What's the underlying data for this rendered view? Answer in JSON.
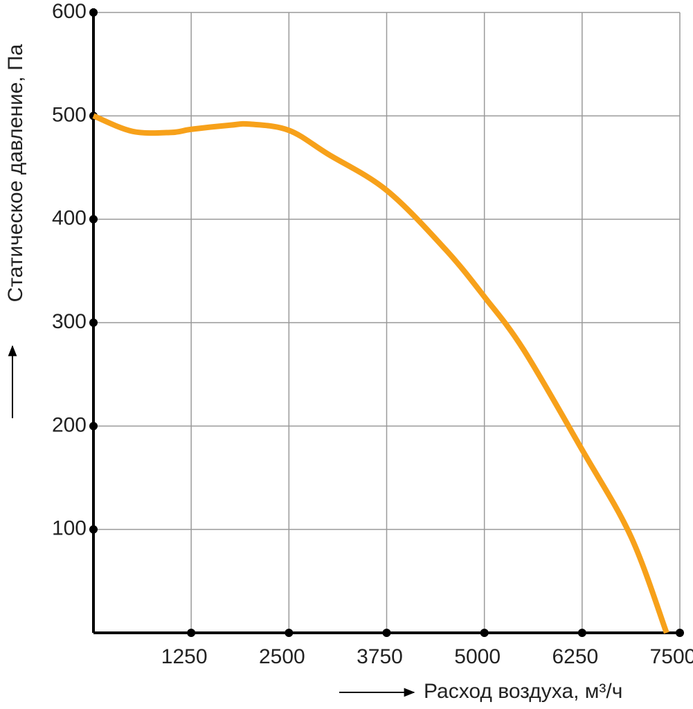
{
  "chart_data": {
    "type": "line",
    "x_label": "Расход воздуха, м³/ч",
    "y_label": "Статическое давление, Па",
    "x": [
      0,
      500,
      1000,
      1250,
      1750,
      2000,
      2500,
      3000,
      3750,
      4500,
      5000,
      5500,
      6250,
      6875,
      7330
    ],
    "values": [
      500,
      485,
      484,
      487,
      491,
      492,
      486,
      463,
      428,
      371,
      325,
      274,
      177,
      93,
      0
    ],
    "color": "#f7a11a",
    "xlim": [
      0,
      7500
    ],
    "xticks": [
      1250,
      2500,
      3750,
      5000,
      6250,
      7500
    ],
    "ylim": [
      0,
      600
    ],
    "yticks": [
      100,
      200,
      300,
      400,
      500,
      600
    ],
    "grid": true
  }
}
